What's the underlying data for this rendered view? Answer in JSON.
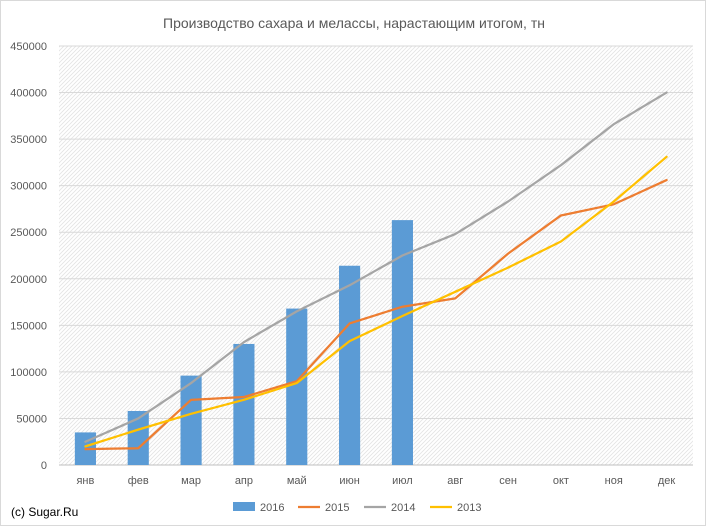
{
  "chart_data": {
    "type": "bar+line",
    "title": "Производство сахара и мелассы, нарастающим итогом, тн",
    "xlabel": "",
    "ylabel": "",
    "categories": [
      "янв",
      "фев",
      "мар",
      "апр",
      "май",
      "июн",
      "июл",
      "авг",
      "сен",
      "окт",
      "ноя",
      "дек"
    ],
    "ylim": [
      0,
      450000
    ],
    "yticks": [
      0,
      50000,
      100000,
      150000,
      200000,
      250000,
      300000,
      350000,
      400000,
      450000
    ],
    "grid": true,
    "legend_position": "bottom",
    "series": [
      {
        "name": "2016",
        "kind": "bar",
        "color": "#5b9bd5",
        "values": [
          35000,
          58000,
          96000,
          130000,
          168000,
          214000,
          263000,
          null,
          null,
          null,
          null,
          null
        ]
      },
      {
        "name": "2015",
        "kind": "line",
        "color": "#ed7d31",
        "values": [
          17000,
          18000,
          70000,
          73000,
          90000,
          152000,
          170000,
          179000,
          227000,
          268000,
          280000,
          306000
        ]
      },
      {
        "name": "2014",
        "kind": "line",
        "color": "#a5a5a5",
        "values": [
          25000,
          50000,
          88000,
          132000,
          165000,
          193000,
          225000,
          248000,
          283000,
          322000,
          366000,
          400000
        ]
      },
      {
        "name": "2013",
        "kind": "line",
        "color": "#ffc000",
        "values": [
          20000,
          38000,
          55000,
          70000,
          88000,
          133000,
          160000,
          186000,
          212000,
          240000,
          283000,
          331000
        ]
      }
    ]
  },
  "copyright": "(c) Sugar.Ru"
}
